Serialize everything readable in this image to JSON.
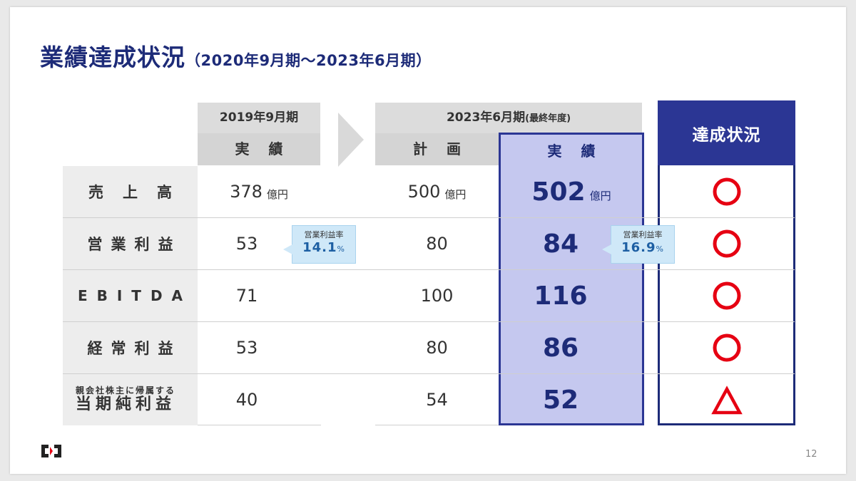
{
  "title": {
    "main": "業績達成状況",
    "sub": "（2020年9月期～2023年6月期）"
  },
  "headers": {
    "fy2019_period": "2019年9月期",
    "fy2019_actual": "実 績",
    "fy2023_period": "2023年6月期",
    "fy2023_note": "(最終年度)",
    "plan": "計 画",
    "actual": "実 績",
    "status": "達成状況"
  },
  "rows": [
    {
      "label": "売上高",
      "v2019": "378",
      "unit2019": "億円",
      "plan": "500",
      "unitPlan": "億円",
      "actual": "502",
      "unitActual": "億円",
      "status": "circle"
    },
    {
      "label": "営業利益",
      "v2019": "53",
      "plan": "80",
      "actual": "84",
      "status": "circle"
    },
    {
      "label": "EBITDA",
      "v2019": "71",
      "plan": "100",
      "actual": "116",
      "status": "circle"
    },
    {
      "label": "経常利益",
      "v2019": "53",
      "plan": "80",
      "actual": "86",
      "status": "circle"
    },
    {
      "label_small": "親会社株主に帰属する",
      "label": "当期純利益",
      "v2019": "40",
      "plan": "54",
      "actual": "52",
      "status": "triangle"
    }
  ],
  "callouts": {
    "c2019": {
      "label": "営業利益率",
      "value": "14.1",
      "pct": "%"
    },
    "c2023": {
      "label": "営業利益率",
      "value": "16.9",
      "pct": "%"
    }
  },
  "page_number": "12",
  "colors": {
    "navy": "#1d2b78",
    "accent_red": "#e60012",
    "actual_fill": "#c5c8ef"
  },
  "icons": {
    "logo": "company-logo",
    "arrow": "chevron-right-icon",
    "achieved": "circle-mark-icon",
    "partial": "triangle-mark-icon"
  }
}
